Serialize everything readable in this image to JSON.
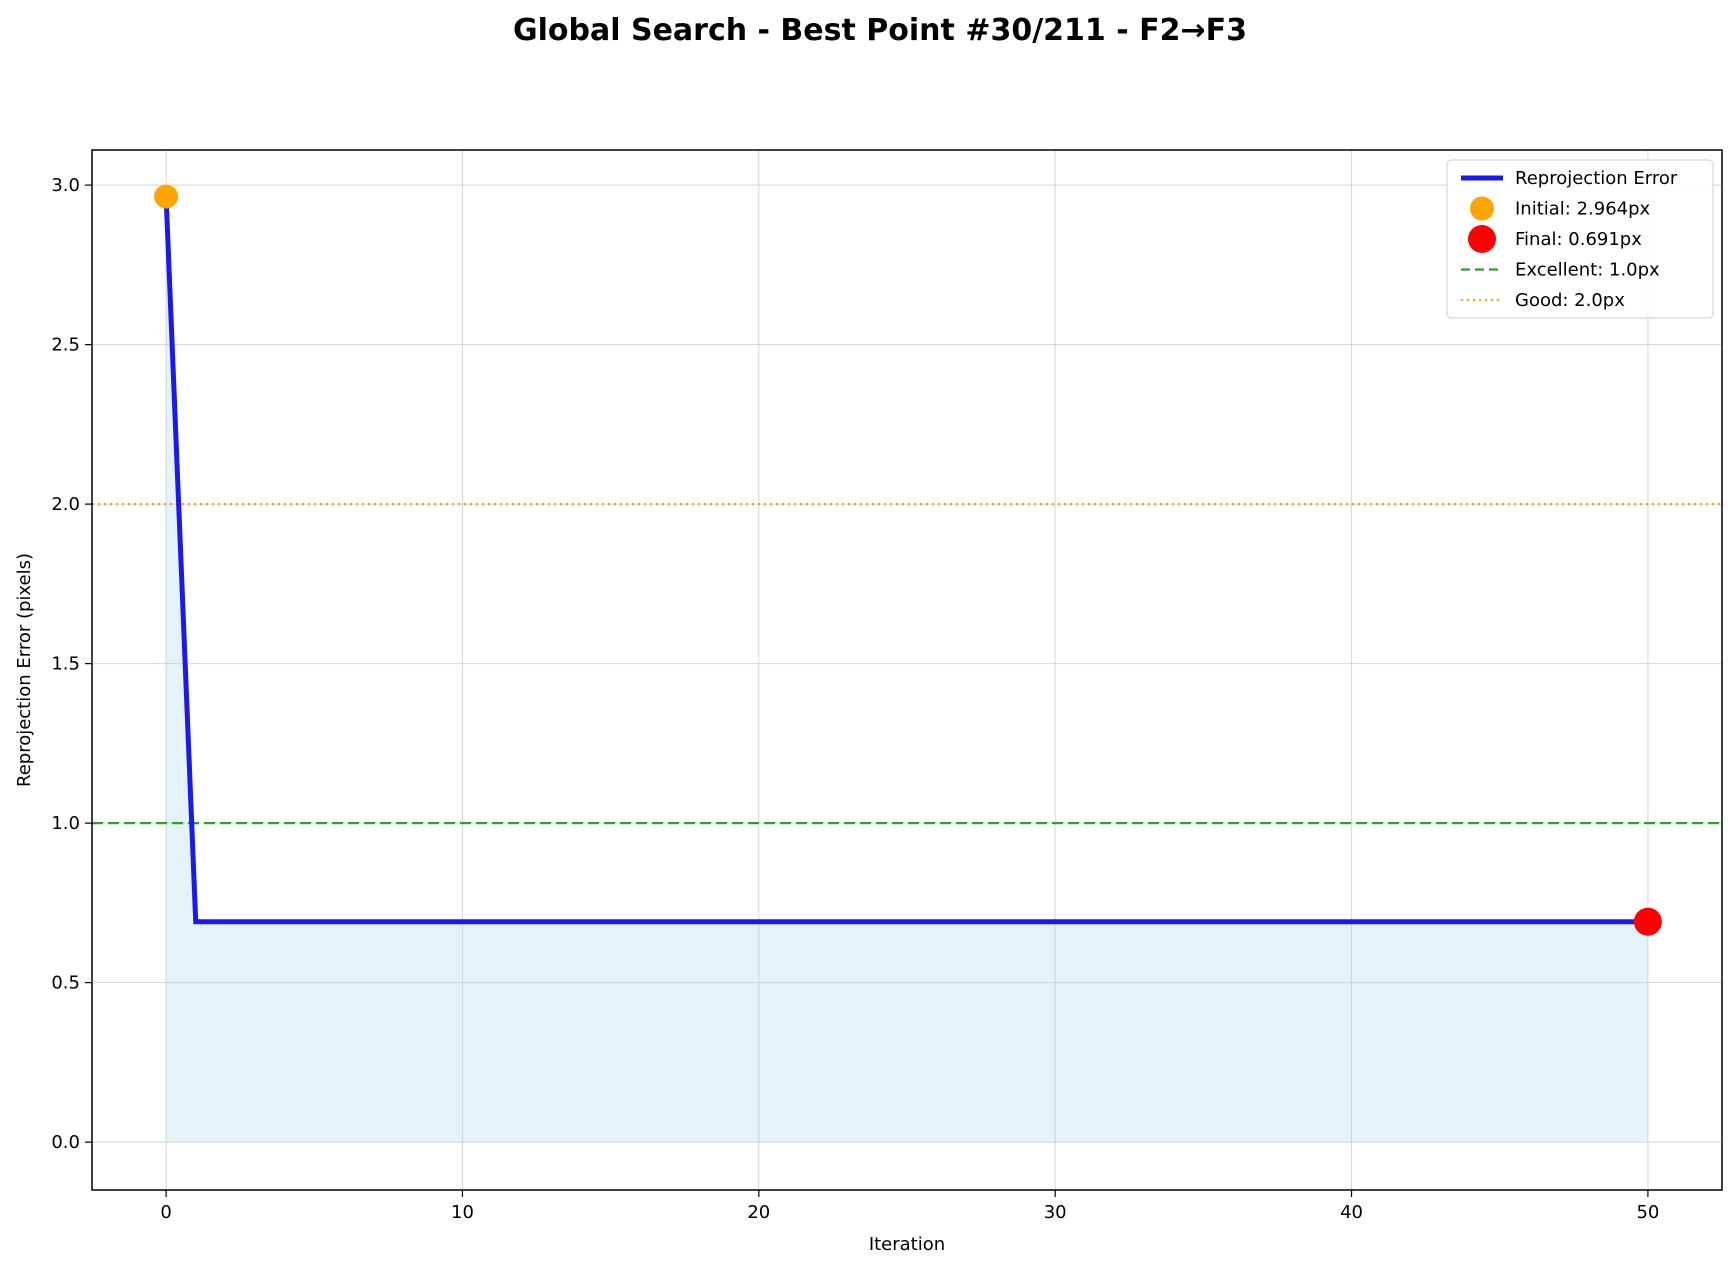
{
  "chart_data": {
    "type": "line",
    "title": "Global Search - Best Point #30/211 - F2→F3",
    "xlabel": "Iteration",
    "ylabel": "Reprojection Error (pixels)",
    "xlim": [
      -2.5,
      52.5
    ],
    "ylim": [
      -0.15,
      3.11
    ],
    "xticks": [
      0,
      10,
      20,
      30,
      40,
      50
    ],
    "yticks": [
      0.0,
      0.5,
      1.0,
      1.5,
      2.0,
      2.5,
      3.0
    ],
    "xtick_labels": [
      "0",
      "10",
      "20",
      "30",
      "40",
      "50"
    ],
    "ytick_labels": [
      "0.0",
      "0.5",
      "1.0",
      "1.5",
      "2.0",
      "2.5",
      "3.0"
    ],
    "grid": true,
    "legend_position": "top-right",
    "series": [
      {
        "name": "Reprojection Error",
        "color": "#1a1aee",
        "x": [
          0,
          1,
          2,
          3,
          4,
          5,
          6,
          7,
          8,
          9,
          10,
          11,
          12,
          13,
          14,
          15,
          16,
          17,
          18,
          19,
          20,
          21,
          22,
          23,
          24,
          25,
          26,
          27,
          28,
          29,
          30,
          31,
          32,
          33,
          34,
          35,
          36,
          37,
          38,
          39,
          40,
          41,
          42,
          43,
          44,
          45,
          46,
          47,
          48,
          49,
          50
        ],
        "y": [
          2.964,
          0.691,
          0.691,
          0.691,
          0.691,
          0.691,
          0.691,
          0.691,
          0.691,
          0.691,
          0.691,
          0.691,
          0.691,
          0.691,
          0.691,
          0.691,
          0.691,
          0.691,
          0.691,
          0.691,
          0.691,
          0.691,
          0.691,
          0.691,
          0.691,
          0.691,
          0.691,
          0.691,
          0.691,
          0.691,
          0.691,
          0.691,
          0.691,
          0.691,
          0.691,
          0.691,
          0.691,
          0.691,
          0.691,
          0.691,
          0.691,
          0.691,
          0.691,
          0.691,
          0.691,
          0.691,
          0.691,
          0.691,
          0.691,
          0.691,
          0.691
        ]
      }
    ],
    "markers": [
      {
        "name": "Initial: 2.964px",
        "x": 0,
        "y": 2.964,
        "color": "#ffa500"
      },
      {
        "name": "Final: 0.691px",
        "x": 50,
        "y": 0.691,
        "color": "#ff0000"
      }
    ],
    "reference_lines": [
      {
        "name": "Excellent: 1.0px",
        "y": 1.0,
        "color": "#2ca02c",
        "style": "dashed"
      },
      {
        "name": "Good: 2.0px",
        "y": 2.0,
        "color": "#ffa500",
        "style": "dotted"
      }
    ],
    "fill_color": "#add8e6"
  }
}
